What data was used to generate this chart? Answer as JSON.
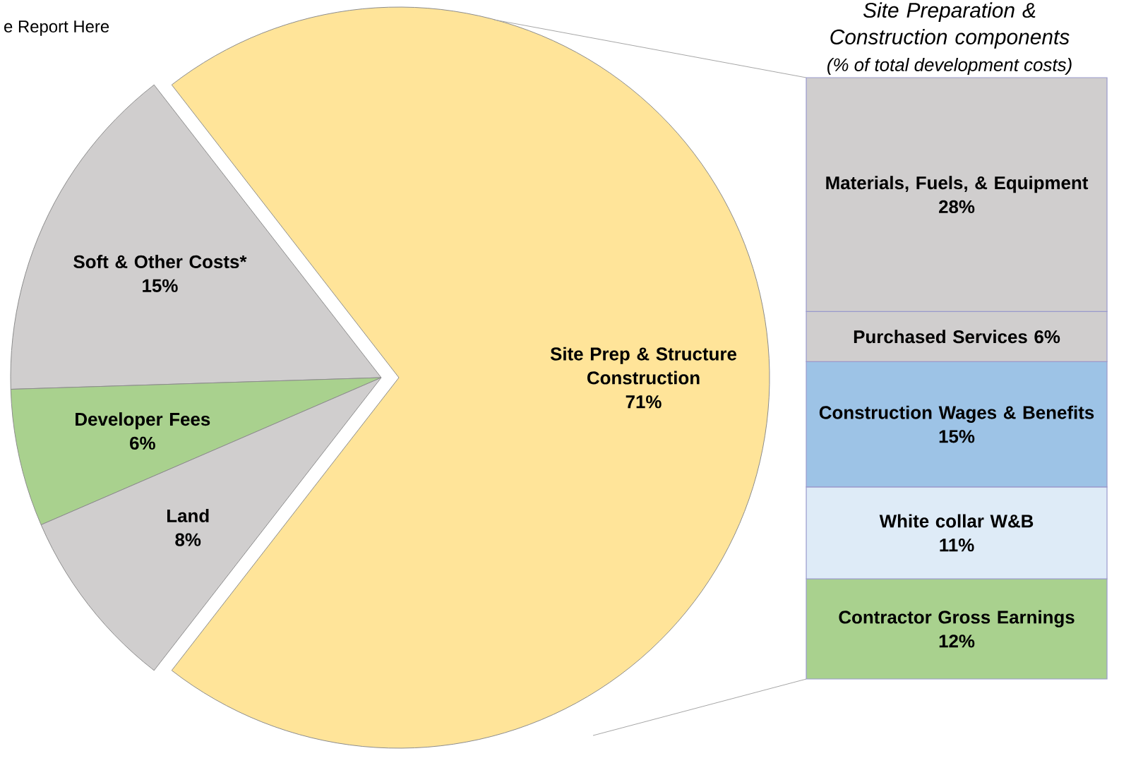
{
  "chart_data": [
    {
      "type": "pie",
      "categories": [
        "Site Prep & Structure Construction",
        "Soft & Other Costs*",
        "Developer Fees",
        "Land"
      ],
      "values": [
        71,
        15,
        6,
        8
      ],
      "value_labels": [
        "71%",
        "15%",
        "6%",
        "8%"
      ],
      "colors": [
        "#ffe499",
        "#d0cece",
        "#a9d18e",
        "#d0cece"
      ],
      "annotations": [
        "e Report Here"
      ]
    },
    {
      "type": "bar",
      "stacked": true,
      "title": "Site Preparation & Construction components",
      "subtitle": "(% of total development costs)",
      "categories": [
        null
      ],
      "series": [
        {
          "name": "Contractor Gross Earnings",
          "color": "#a9d18e",
          "values": [
            12
          ],
          "value_labels": [
            "12%"
          ]
        },
        {
          "name": "White collar W&B",
          "color": "#deebf7",
          "values": [
            11
          ],
          "value_labels": [
            "11%"
          ]
        },
        {
          "name": "Construction Wages & Benefits",
          "color": "#9dc3e6",
          "values": [
            15
          ],
          "value_labels": [
            "15%"
          ]
        },
        {
          "name": "Purchased Services",
          "color": "#d0cece",
          "values": [
            6
          ],
          "value_labels": [
            "6%"
          ]
        },
        {
          "name": "Materials, Fuels, & Equipment",
          "color": "#d0cece",
          "values": [
            28
          ],
          "value_labels": [
            "28%"
          ]
        }
      ]
    }
  ]
}
